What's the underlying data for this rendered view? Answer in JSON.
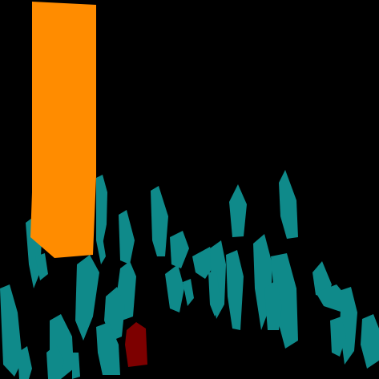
{
  "scene": {
    "background_color": "#000000",
    "segments": [
      {
        "label": "pillar",
        "color": "#ff8c00",
        "count": 1
      },
      {
        "label": "shard",
        "color": "#0f8a8a",
        "count": 38
      },
      {
        "label": "marker",
        "color": "#7d0000",
        "count": 1
      }
    ]
  }
}
